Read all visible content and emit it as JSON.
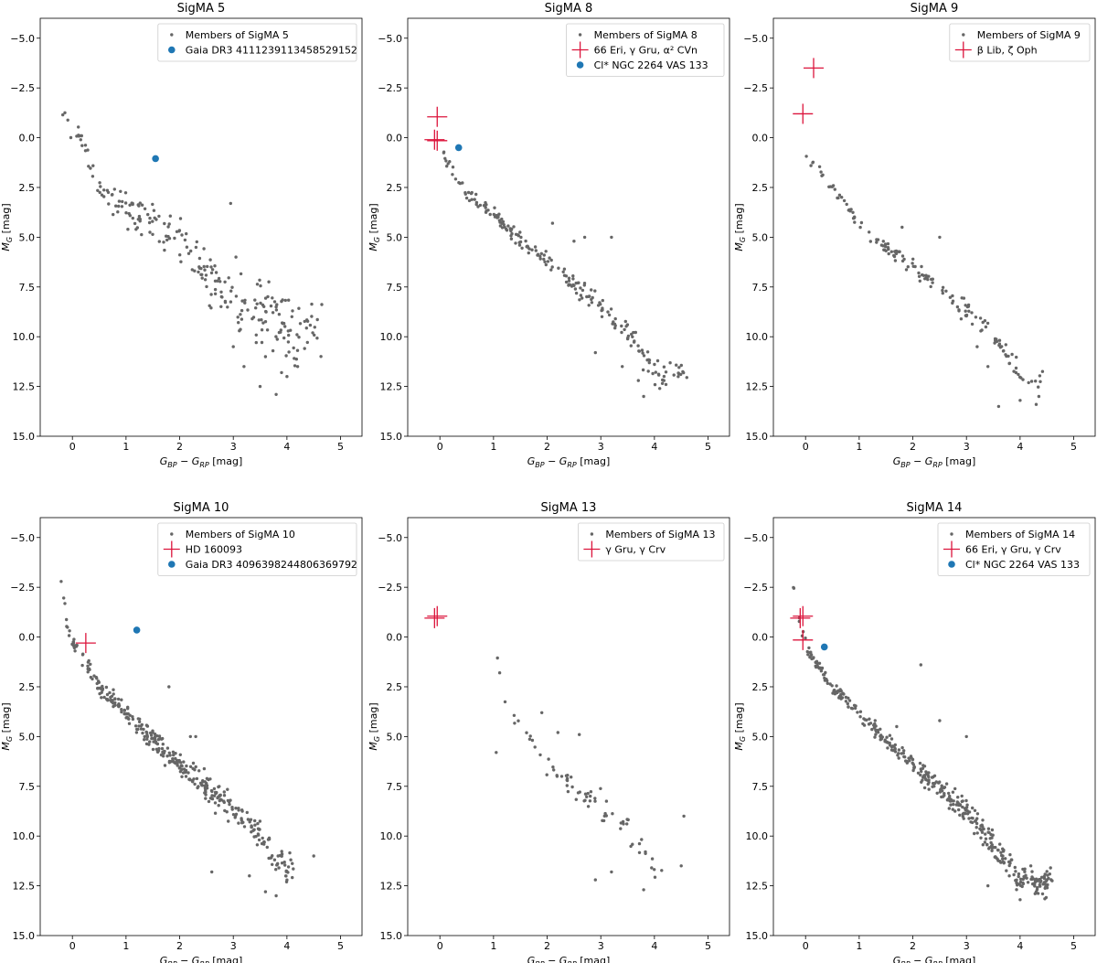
{
  "chart_data": [
    {
      "type": "scatter",
      "title": "SigMA 5",
      "xlabel": "G_BP − G_RP [mag]",
      "ylabel": "M_G [mag]",
      "xlim": [
        -0.6,
        5.4
      ],
      "ylim": [
        15.0,
        -6.0
      ],
      "y_inverted": true,
      "xticks": [
        0,
        1,
        2,
        3,
        4,
        5
      ],
      "yticks": [
        -5.0,
        -2.5,
        0.0,
        2.5,
        5.0,
        7.5,
        10.0,
        12.5,
        15.0
      ],
      "legend_position": "upper-right",
      "series": [
        {
          "name": "Members of SigMA 5",
          "marker": "point",
          "color": "#666666",
          "seed": 5,
          "n": 240,
          "x_range": [
            -0.2,
            4.6
          ],
          "anchors": [
            [
              -0.2,
              -1.4
            ],
            [
              0,
              0
            ],
            [
              0.1,
              -0.1
            ],
            [
              0.5,
              2.5
            ],
            [
              1.0,
              3.5
            ],
            [
              2.0,
              5.0
            ],
            [
              2.5,
              7.0
            ],
            [
              3.0,
              8.2
            ],
            [
              3.5,
              8.8
            ],
            [
              4.0,
              9.3
            ],
            [
              4.6,
              10.0
            ]
          ],
          "scatter": 1.6,
          "extra": [
            [
              3.0,
              10.5
            ],
            [
              3.2,
              11.5
            ],
            [
              3.5,
              12.5
            ],
            [
              3.8,
              12.9
            ],
            [
              4.0,
              12.0
            ],
            [
              4.2,
              11.5
            ],
            [
              3.6,
              11.0
            ],
            [
              3.9,
              11.8
            ],
            [
              2.95,
              3.3
            ],
            [
              3.05,
              6.0
            ]
          ]
        },
        {
          "name": "Gaia DR3 4111239113458529152",
          "marker": "dot",
          "color": "#1f77b4",
          "points": [
            [
              1.55,
              1.05
            ]
          ]
        }
      ]
    },
    {
      "type": "scatter",
      "title": "SigMA 8",
      "xlabel": "G_BP − G_RP [mag]",
      "ylabel": "M_G [mag]",
      "xlim": [
        -0.6,
        5.4
      ],
      "ylim": [
        15.0,
        -6.0
      ],
      "y_inverted": true,
      "xticks": [
        0,
        1,
        2,
        3,
        4,
        5
      ],
      "yticks": [
        -5.0,
        -2.5,
        0.0,
        2.5,
        5.0,
        7.5,
        10.0,
        12.5,
        15.0
      ],
      "legend_position": "upper-right",
      "series": [
        {
          "name": "Members of SigMA 8",
          "marker": "point",
          "color": "#666666",
          "seed": 8,
          "n": 210,
          "x_range": [
            -0.1,
            4.6
          ],
          "anchors": [
            [
              -0.1,
              0.2
            ],
            [
              0.2,
              1.5
            ],
            [
              0.5,
              2.8
            ],
            [
              1.0,
              3.8
            ],
            [
              1.5,
              5.2
            ],
            [
              2.0,
              6.2
            ],
            [
              2.5,
              7.3
            ],
            [
              3.0,
              8.5
            ],
            [
              3.5,
              9.8
            ],
            [
              4.0,
              11.8
            ],
            [
              4.5,
              11.8
            ]
          ],
          "scatter": 0.55,
          "extra": [
            [
              3.2,
              5.0
            ],
            [
              2.1,
              4.3
            ],
            [
              2.7,
              5.0
            ],
            [
              2.5,
              5.2
            ],
            [
              3.4,
              11.5
            ],
            [
              3.7,
              12.2
            ],
            [
              3.8,
              13.0
            ],
            [
              4.1,
              12.6
            ],
            [
              2.9,
              10.8
            ]
          ]
        },
        {
          "name": "66 Eri, γ Gru, α² CVn",
          "marker": "plus",
          "color": "#dc143c",
          "points": [
            [
              -0.05,
              -1.05
            ],
            [
              -0.1,
              0.1
            ],
            [
              -0.05,
              0.15
            ]
          ]
        },
        {
          "name": "Cl* NGC 2264 VAS 133",
          "marker": "dot",
          "color": "#1f77b4",
          "points": [
            [
              0.35,
              0.5
            ]
          ]
        }
      ]
    },
    {
      "type": "scatter",
      "title": "SigMA 9",
      "xlabel": "G_BP − G_RP [mag]",
      "ylabel": "M_G [mag]",
      "xlim": [
        -0.6,
        5.4
      ],
      "ylim": [
        15.0,
        -6.0
      ],
      "y_inverted": true,
      "xticks": [
        0,
        1,
        2,
        3,
        4,
        5
      ],
      "yticks": [
        -5.0,
        -2.5,
        0.0,
        2.5,
        5.0,
        7.5,
        10.0,
        12.5,
        15.0
      ],
      "legend_position": "upper-right",
      "series": [
        {
          "name": "Members of SigMA 9",
          "marker": "point",
          "color": "#666666",
          "seed": 9,
          "n": 150,
          "x_range": [
            0.0,
            4.4
          ],
          "anchors": [
            [
              0.0,
              1.0
            ],
            [
              0.3,
              1.8
            ],
            [
              0.5,
              2.5
            ],
            [
              1.0,
              4.2
            ],
            [
              1.5,
              5.5
            ],
            [
              2.0,
              6.5
            ],
            [
              2.5,
              7.5
            ],
            [
              3.0,
              8.7
            ],
            [
              3.5,
              9.8
            ],
            [
              4.0,
              12.0
            ],
            [
              4.4,
              12.5
            ]
          ],
          "scatter": 0.55,
          "extra": [
            [
              1.8,
              4.5
            ],
            [
              2.5,
              5.0
            ],
            [
              3.6,
              13.5
            ],
            [
              4.0,
              13.2
            ],
            [
              4.3,
              13.4
            ],
            [
              3.4,
              11.5
            ],
            [
              3.2,
              10.5
            ]
          ]
        },
        {
          "name": "β Lib, ζ Oph",
          "marker": "plus",
          "color": "#dc143c",
          "points": [
            [
              0.15,
              -3.5
            ],
            [
              -0.05,
              -1.2
            ]
          ]
        }
      ]
    },
    {
      "type": "scatter",
      "title": "SigMA 10",
      "xlabel": "G_BP − G_RP [mag]",
      "ylabel": "M_G [mag]",
      "xlim": [
        -0.6,
        5.4
      ],
      "ylim": [
        15.0,
        -6.0
      ],
      "y_inverted": true,
      "xticks": [
        0,
        1,
        2,
        3,
        4,
        5
      ],
      "yticks": [
        -5.0,
        -2.5,
        0.0,
        2.5,
        5.0,
        7.5,
        10.0,
        12.5,
        15.0
      ],
      "legend_position": "upper-right",
      "series": [
        {
          "name": "Members of SigMA 10",
          "marker": "point",
          "color": "#666666",
          "seed": 10,
          "n": 360,
          "x_range": [
            -0.2,
            4.1
          ],
          "anchors": [
            [
              -0.2,
              -2.8
            ],
            [
              -0.1,
              -0.5
            ],
            [
              0,
              0.2
            ],
            [
              0.3,
              1.5
            ],
            [
              0.5,
              2.5
            ],
            [
              1.0,
              3.8
            ],
            [
              1.5,
              5.2
            ],
            [
              2.0,
              6.5
            ],
            [
              2.5,
              7.6
            ],
            [
              3.0,
              8.7
            ],
            [
              3.5,
              10.0
            ],
            [
              4.0,
              11.8
            ]
          ],
          "scatter": 0.7,
          "extra": [
            [
              1.8,
              2.5
            ],
            [
              2.2,
              5.0
            ],
            [
              1.5,
              4.8
            ],
            [
              2.3,
              5.0
            ],
            [
              3.3,
              12.0
            ],
            [
              3.6,
              12.8
            ],
            [
              4.5,
              11.0
            ],
            [
              3.8,
              13.0
            ],
            [
              2.6,
              11.8
            ]
          ]
        },
        {
          "name": "HD 160093",
          "marker": "plus",
          "color": "#dc143c",
          "points": [
            [
              0.25,
              0.3
            ]
          ]
        },
        {
          "name": "Gaia DR3 4096398244806369792",
          "marker": "dot",
          "color": "#1f77b4",
          "points": [
            [
              1.2,
              -0.35
            ]
          ]
        }
      ]
    },
    {
      "type": "scatter",
      "title": "SigMA 13",
      "xlabel": "G_BP − G_RP [mag]",
      "ylabel": "M_G [mag]",
      "xlim": [
        -0.6,
        5.4
      ],
      "ylim": [
        15.0,
        -6.0
      ],
      "y_inverted": true,
      "xticks": [
        0,
        1,
        2,
        3,
        4,
        5
      ],
      "yticks": [
        -5.0,
        -2.5,
        0.0,
        2.5,
        5.0,
        7.5,
        10.0,
        12.5,
        15.0
      ],
      "legend_position": "upper-right",
      "series": [
        {
          "name": "Members of SigMA 13",
          "marker": "point",
          "color": "#666666",
          "seed": 13,
          "n": 70,
          "x_range": [
            1.0,
            4.2
          ],
          "anchors": [
            [
              1.0,
              -0.1
            ],
            [
              1.2,
              3.5
            ],
            [
              1.5,
              4.5
            ],
            [
              2.0,
              6.5
            ],
            [
              2.5,
              7.5
            ],
            [
              3.0,
              8.5
            ],
            [
              3.5,
              9.5
            ],
            [
              4.0,
              11.5
            ],
            [
              4.2,
              11.5
            ]
          ],
          "scatter": 0.8,
          "extra": [
            [
              1.05,
              5.8
            ],
            [
              2.6,
              4.9
            ],
            [
              2.2,
              4.8
            ],
            [
              1.9,
              3.8
            ],
            [
              2.9,
              12.2
            ],
            [
              3.8,
              12.7
            ],
            [
              4.55,
              9.0
            ],
            [
              4.5,
              11.5
            ],
            [
              3.2,
              11.8
            ]
          ]
        },
        {
          "name": "γ Gru, γ Crv",
          "marker": "plus",
          "color": "#dc143c",
          "points": [
            [
              -0.05,
              -1.05
            ],
            [
              -0.1,
              -0.95
            ]
          ]
        }
      ]
    },
    {
      "type": "scatter",
      "title": "SigMA 14",
      "xlabel": "G_BP − G_RP [mag]",
      "ylabel": "M_G [mag]",
      "xlim": [
        -0.6,
        5.4
      ],
      "ylim": [
        15.0,
        -6.0
      ],
      "y_inverted": true,
      "xticks": [
        0,
        1,
        2,
        3,
        4,
        5
      ],
      "yticks": [
        -5.0,
        -2.5,
        0.0,
        2.5,
        5.0,
        7.5,
        10.0,
        12.5,
        15.0
      ],
      "legend_position": "upper-right",
      "series": [
        {
          "name": "Members of SigMA 14",
          "marker": "point",
          "color": "#666666",
          "seed": 14,
          "n": 420,
          "x_range": [
            -0.2,
            4.6
          ],
          "anchors": [
            [
              -0.2,
              -2.5
            ],
            [
              -0.1,
              -0.5
            ],
            [
              0.1,
              1.0
            ],
            [
              0.5,
              2.5
            ],
            [
              1.0,
              3.8
            ],
            [
              1.5,
              5.2
            ],
            [
              2.0,
              6.4
            ],
            [
              2.5,
              7.6
            ],
            [
              3.0,
              8.8
            ],
            [
              3.5,
              10.5
            ],
            [
              4.0,
              12.2
            ],
            [
              4.6,
              12.3
            ]
          ],
          "scatter": 0.6,
          "extra": [
            [
              2.15,
              1.4
            ],
            [
              3.0,
              5.0
            ],
            [
              2.5,
              4.2
            ],
            [
              1.7,
              4.5
            ],
            [
              4.2,
              11.5
            ],
            [
              4.3,
              12.8
            ],
            [
              4.0,
              13.2
            ],
            [
              3.4,
              12.5
            ],
            [
              3.8,
              12.0
            ]
          ]
        },
        {
          "name": "66 Eri, γ Gru, γ Crv",
          "marker": "plus",
          "color": "#dc143c",
          "points": [
            [
              -0.05,
              -1.05
            ],
            [
              -0.1,
              -0.95
            ],
            [
              -0.05,
              0.15
            ]
          ]
        },
        {
          "name": "Cl* NGC 2264 VAS 133",
          "marker": "dot",
          "color": "#1f77b4",
          "points": [
            [
              0.35,
              0.5
            ]
          ]
        }
      ]
    }
  ]
}
